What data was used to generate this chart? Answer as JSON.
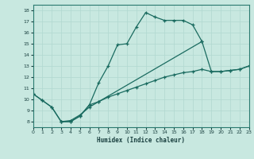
{
  "xlabel": "Humidex (Indice chaleur)",
  "xlim": [
    0,
    23
  ],
  "ylim": [
    7.5,
    18.5
  ],
  "xticks": [
    0,
    1,
    2,
    3,
    4,
    5,
    6,
    7,
    8,
    9,
    10,
    11,
    12,
    13,
    14,
    15,
    16,
    17,
    18,
    19,
    20,
    21,
    22,
    23
  ],
  "yticks": [
    8,
    9,
    10,
    11,
    12,
    13,
    14,
    15,
    16,
    17,
    18
  ],
  "bg_color": "#c8e8e0",
  "line_color": "#1a6b60",
  "grid_color": "#b0d8d0",
  "line1_x": [
    0,
    1,
    2,
    3,
    4,
    5,
    6,
    7,
    8,
    9,
    10,
    11,
    12,
    13,
    14,
    15,
    16,
    17,
    18
  ],
  "line1_y": [
    10.5,
    9.9,
    9.3,
    8.0,
    8.0,
    8.5,
    9.5,
    11.5,
    13.0,
    14.9,
    15.0,
    16.5,
    17.8,
    17.4,
    17.1,
    17.1,
    17.1,
    16.7,
    15.2
  ],
  "line2_x": [
    3,
    4,
    5,
    6,
    7,
    18,
    19,
    20,
    21,
    22,
    23
  ],
  "line2_y": [
    8.0,
    8.0,
    8.5,
    9.5,
    9.8,
    15.2,
    12.5,
    12.5,
    12.6,
    12.7,
    13.0
  ],
  "line3_x": [
    0,
    1,
    2,
    3,
    4,
    5,
    6,
    7,
    8,
    9,
    10,
    11,
    12,
    13,
    14,
    15,
    16,
    17,
    18,
    19,
    20,
    21,
    22,
    23
  ],
  "line3_y": [
    10.5,
    9.9,
    9.3,
    8.0,
    8.1,
    8.6,
    9.3,
    9.8,
    10.2,
    10.5,
    10.8,
    11.1,
    11.4,
    11.7,
    12.0,
    12.2,
    12.4,
    12.5,
    12.7,
    12.5,
    12.5,
    12.6,
    12.7,
    13.0
  ]
}
